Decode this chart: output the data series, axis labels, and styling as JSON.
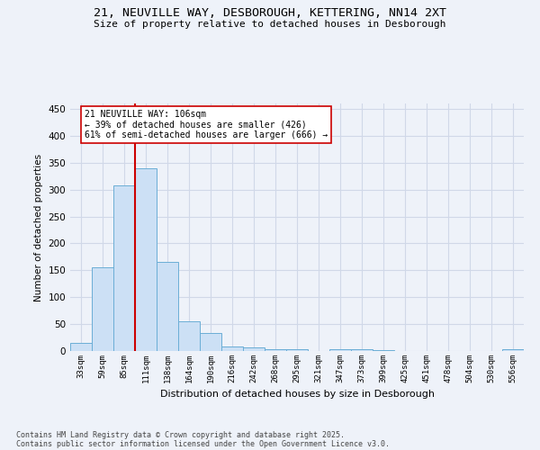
{
  "title_line1": "21, NEUVILLE WAY, DESBOROUGH, KETTERING, NN14 2XT",
  "title_line2": "Size of property relative to detached houses in Desborough",
  "xlabel": "Distribution of detached houses by size in Desborough",
  "ylabel": "Number of detached properties",
  "categories": [
    "33sqm",
    "59sqm",
    "85sqm",
    "111sqm",
    "138sqm",
    "164sqm",
    "190sqm",
    "216sqm",
    "242sqm",
    "268sqm",
    "295sqm",
    "321sqm",
    "347sqm",
    "373sqm",
    "399sqm",
    "425sqm",
    "451sqm",
    "478sqm",
    "504sqm",
    "530sqm",
    "556sqm"
  ],
  "values": [
    15,
    155,
    308,
    340,
    165,
    55,
    33,
    8,
    6,
    4,
    3,
    0,
    4,
    4,
    1,
    0,
    0,
    0,
    0,
    0,
    3
  ],
  "bar_color": "#cce0f5",
  "bar_edge_color": "#6baed6",
  "grid_color": "#d0d8e8",
  "background_color": "#eef2f9",
  "vline_x_idx": 3,
  "vline_color": "#cc0000",
  "annotation_line1": "21 NEUVILLE WAY: 106sqm",
  "annotation_line2": "← 39% of detached houses are smaller (426)",
  "annotation_line3": "61% of semi-detached houses are larger (666) →",
  "annotation_box_color": "#ffffff",
  "annotation_box_edge": "#cc0000",
  "ylim": [
    0,
    460
  ],
  "yticks": [
    0,
    50,
    100,
    150,
    200,
    250,
    300,
    350,
    400,
    450
  ],
  "footer_line1": "Contains HM Land Registry data © Crown copyright and database right 2025.",
  "footer_line2": "Contains public sector information licensed under the Open Government Licence v3.0."
}
